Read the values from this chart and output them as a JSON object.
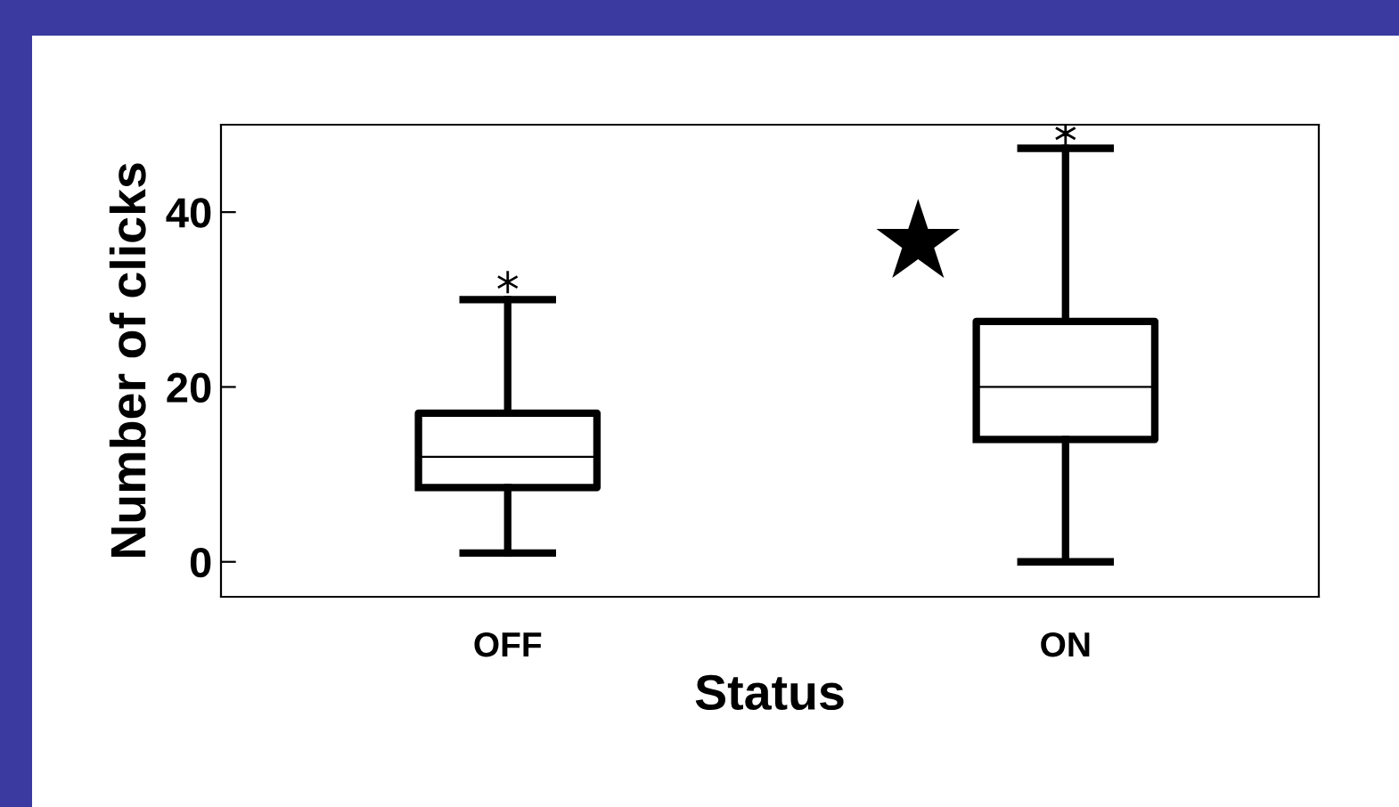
{
  "chart_data": {
    "type": "box",
    "xlabel": "Status",
    "ylabel": "Number of clicks",
    "categories": [
      "OFF",
      "ON"
    ],
    "boxes": [
      {
        "low": 1,
        "q1": 8.5,
        "median": 12,
        "q3": 17,
        "high": 30,
        "outliers": [
          32
        ]
      },
      {
        "low": 0,
        "q1": 14,
        "median": 20,
        "q3": 27.5,
        "high": 47.3,
        "outliers": [
          49
        ]
      }
    ],
    "ylim": [
      -4,
      50
    ],
    "yticks": [
      0,
      20,
      40
    ],
    "grid": false,
    "legend": false,
    "annotations": [
      "★"
    ]
  }
}
